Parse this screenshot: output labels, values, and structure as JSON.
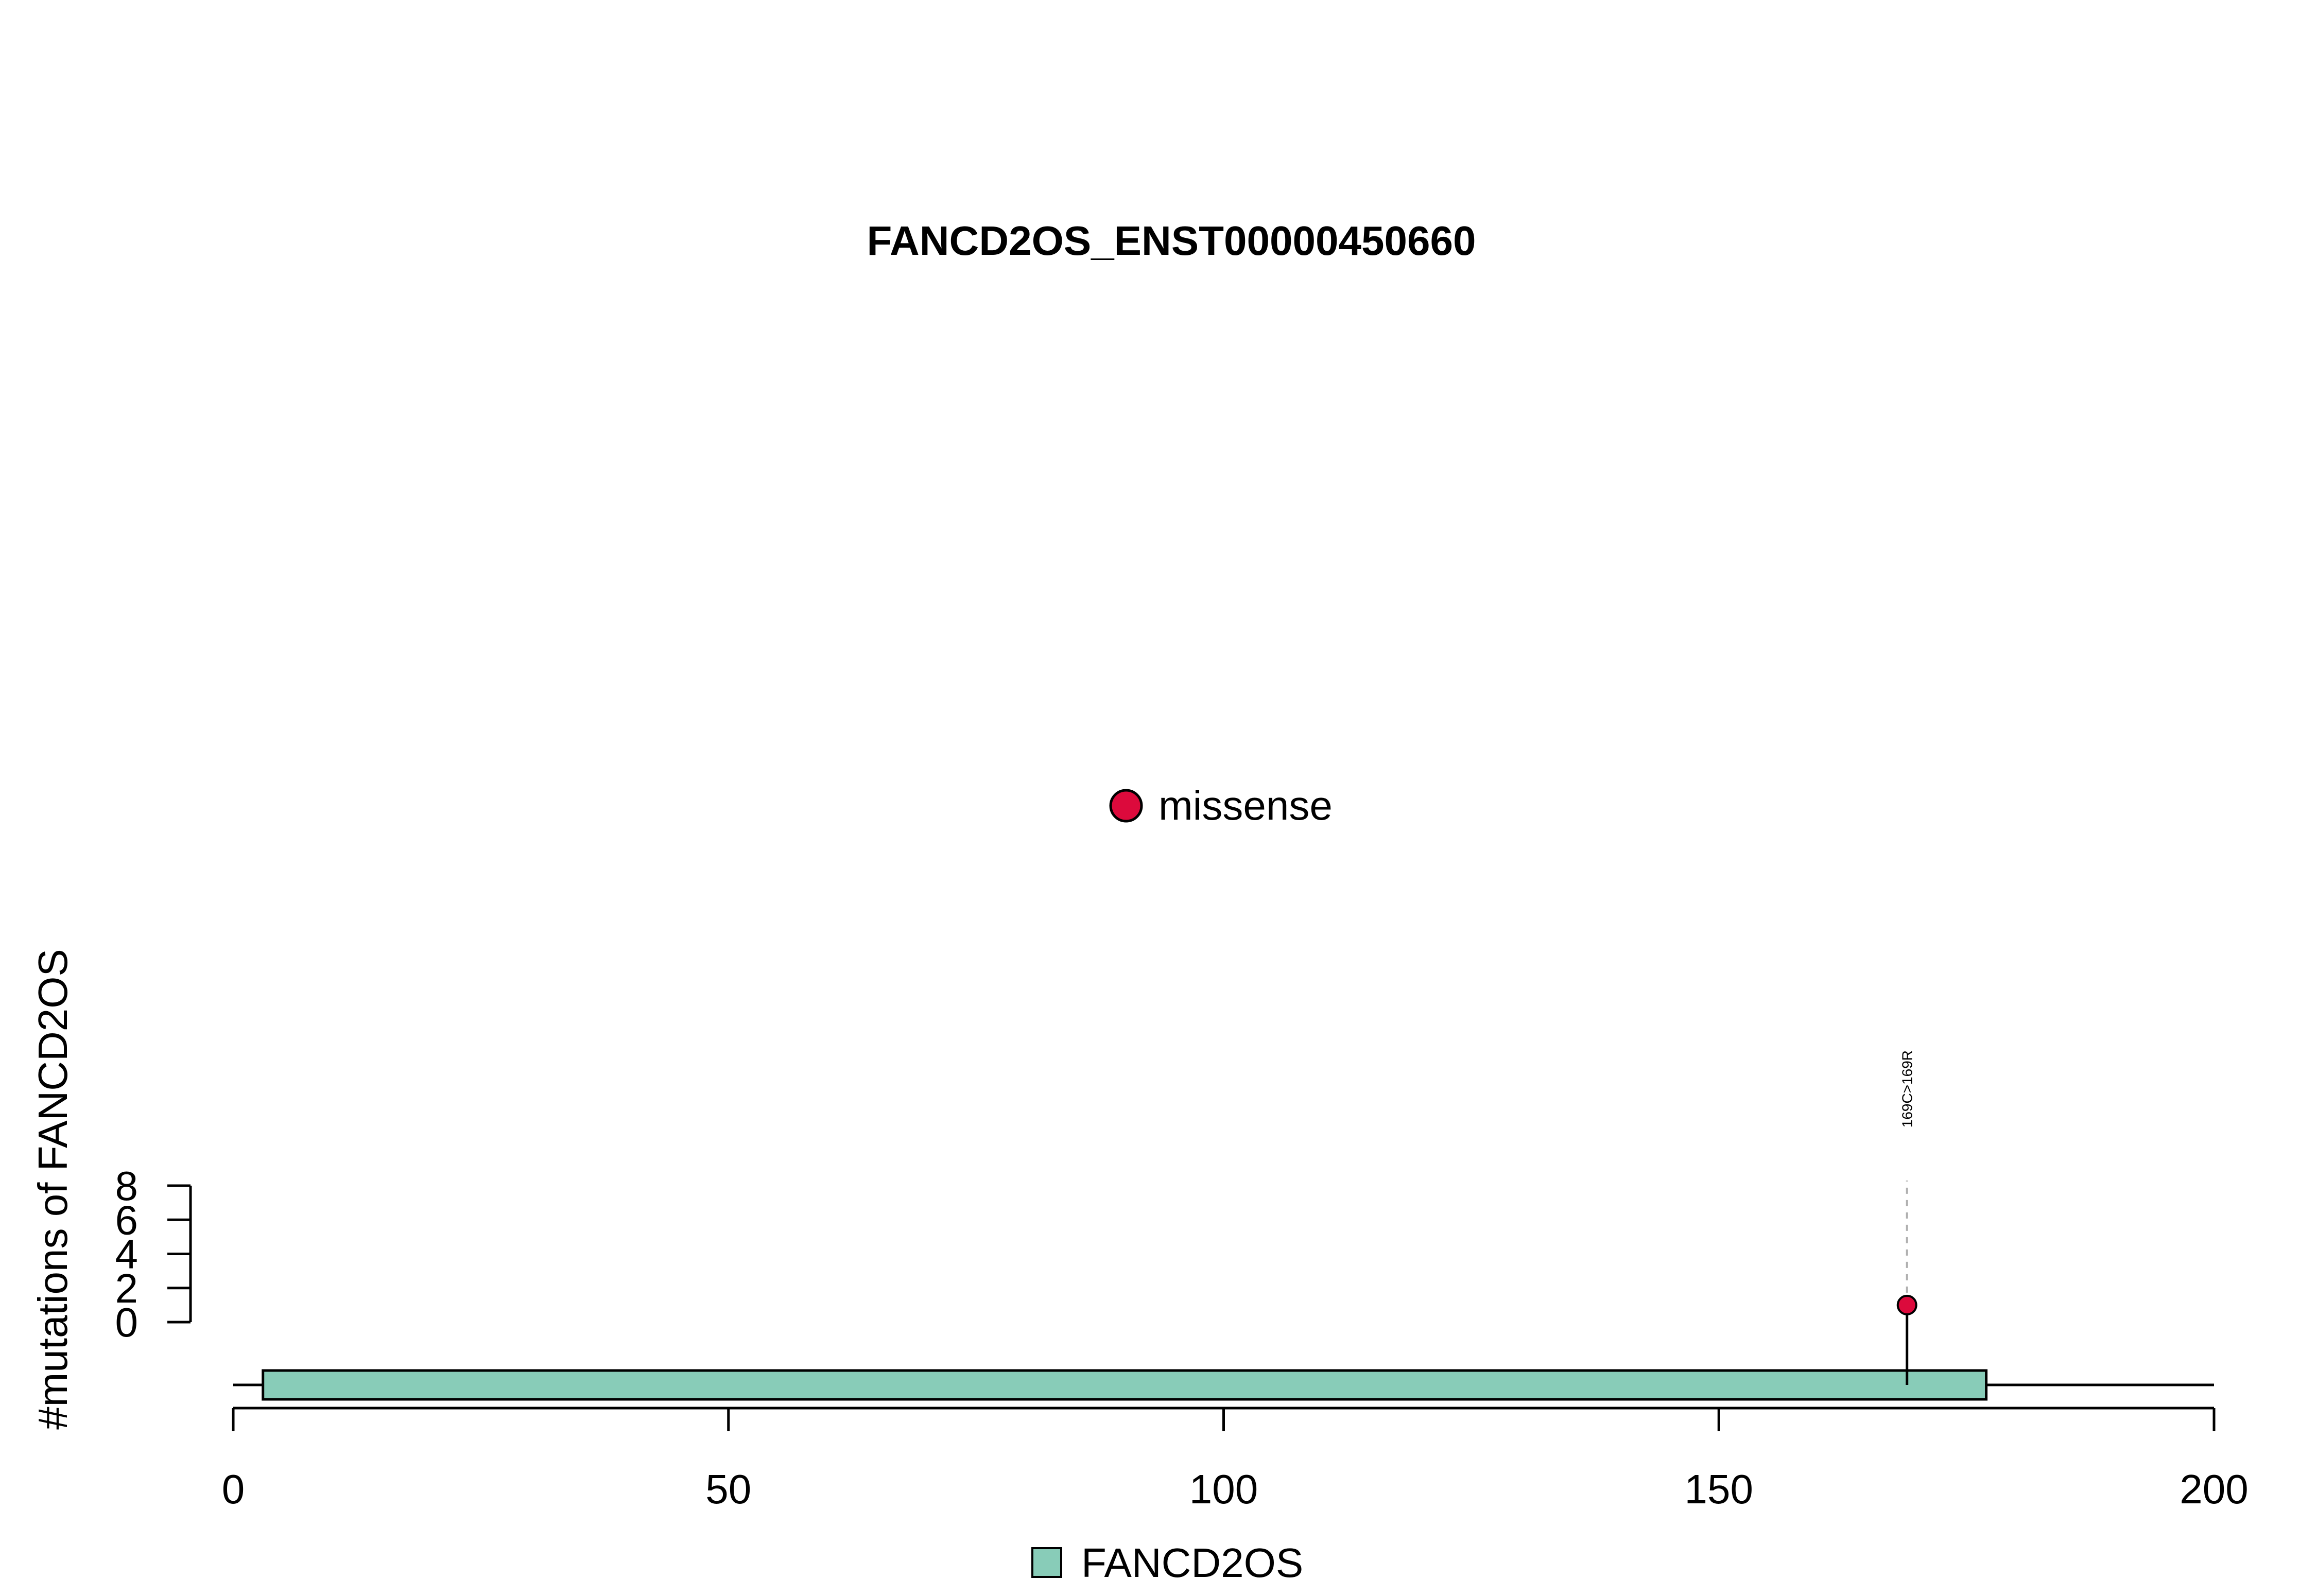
{
  "chart_data": {
    "type": "lollipop",
    "title": "FANCD2OS_ENST00000450660",
    "ylabel": "#mutations of FANCD2OS",
    "xlabel": "",
    "xlim": [
      0,
      200
    ],
    "x_ticks": [
      0,
      50,
      100,
      150,
      200
    ],
    "ylim": [
      0,
      8
    ],
    "y_ticks": [
      0,
      2,
      4,
      6,
      8
    ],
    "protein": {
      "name": "FANCD2OS",
      "length": 200,
      "domains": [
        {
          "name": "FANCD2OS",
          "start": 3,
          "end": 177,
          "color": "#88CCB8"
        }
      ]
    },
    "mutations": [
      {
        "position": 169,
        "count": 1,
        "label": "169C>169R",
        "type": "missense",
        "color": "#DC0A3C"
      }
    ],
    "point_legend": [
      {
        "label": "missense",
        "color": "#DC0A3C"
      }
    ],
    "domain_legend": [
      {
        "label": "FANCD2OS",
        "color": "#88CCB8"
      }
    ],
    "grid": false
  }
}
